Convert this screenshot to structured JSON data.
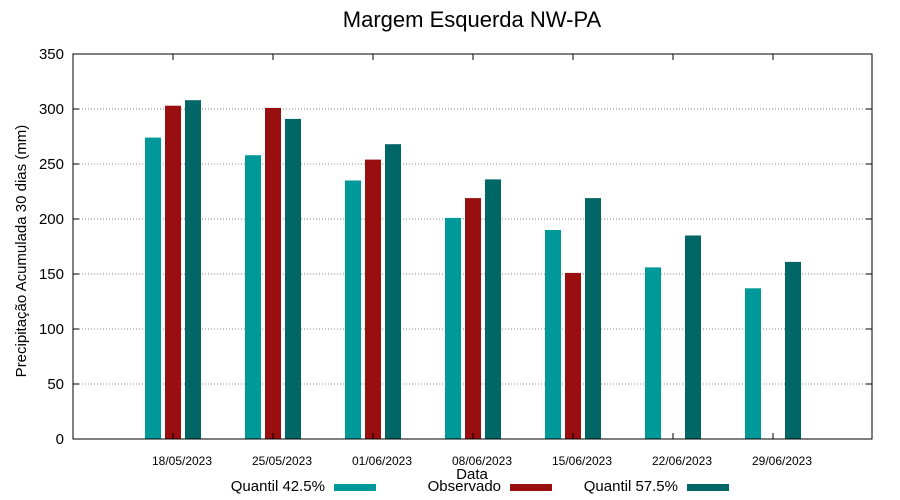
{
  "chart_data": {
    "type": "bar",
    "title": "Margem Esquerda NW-PA",
    "xlabel": "Data",
    "ylabel": "Precipitação Acumulada 30 dias (mm)",
    "ylim": [
      0,
      350
    ],
    "yticks": [
      0,
      50,
      100,
      150,
      200,
      250,
      300,
      350
    ],
    "grid": true,
    "legend_position": "bottom",
    "categories": [
      "18/05/2023",
      "25/05/2023",
      "01/06/2023",
      "08/06/2023",
      "15/06/2023",
      "22/06/2023",
      "29/06/2023"
    ],
    "series": [
      {
        "name": "Quantil 42.5%",
        "color": "#009999",
        "values": [
          274,
          258,
          235,
          201,
          190,
          156,
          137
        ]
      },
      {
        "name": "Observado",
        "color": "#990f0f",
        "values": [
          303,
          301,
          254,
          219,
          151,
          null,
          null
        ]
      },
      {
        "name": "Quantil 57.5%",
        "color": "#006666",
        "values": [
          308,
          291,
          268,
          236,
          219,
          185,
          161
        ]
      }
    ]
  }
}
